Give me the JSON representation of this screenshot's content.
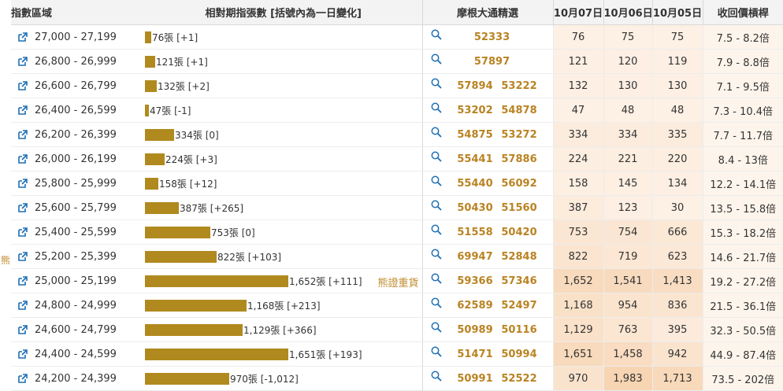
{
  "side_label": "熊",
  "headers": {
    "range": "指數區域",
    "ma": "相對期指張數 [括號內為一日變化]",
    "warrants": "摩根大通精選",
    "d1": "10月07日",
    "d2": "10月06日",
    "d3": "10月05日",
    "recall": "收回價槓桿"
  },
  "colors": {
    "bar": "#b08a1e",
    "accent": "#c08b2d",
    "heat_strong": "#f7d5b3",
    "heat_light": "#fdf1e6"
  },
  "rows": [
    {
      "range": "27,000 - 27,199",
      "ma_value": 76,
      "ma_label": "76張 [+1]",
      "tag": "",
      "warrants": [
        "52333"
      ],
      "d1": "76",
      "d2": "75",
      "d3": "75",
      "recall": "7.5 - 8.2倍"
    },
    {
      "range": "26,800 - 26,999",
      "ma_value": 121,
      "ma_label": "121張 [+1]",
      "tag": "",
      "warrants": [
        "57897"
      ],
      "d1": "121",
      "d2": "120",
      "d3": "119",
      "recall": "7.9 - 8.8倍"
    },
    {
      "range": "26,600 - 26,799",
      "ma_value": 132,
      "ma_label": "132張 [+2]",
      "tag": "",
      "warrants": [
        "57894",
        "53222"
      ],
      "d1": "132",
      "d2": "130",
      "d3": "130",
      "recall": "7.1 - 9.5倍"
    },
    {
      "range": "26,400 - 26,599",
      "ma_value": 47,
      "ma_label": "47張 [-1]",
      "tag": "",
      "warrants": [
        "53202",
        "54878"
      ],
      "d1": "47",
      "d2": "48",
      "d3": "48",
      "recall": "7.3 - 10.4倍"
    },
    {
      "range": "26,200 - 26,399",
      "ma_value": 334,
      "ma_label": "334張 [0]",
      "tag": "",
      "warrants": [
        "54875",
        "53272"
      ],
      "d1": "334",
      "d2": "334",
      "d3": "335",
      "recall": "7.7 - 11.7倍"
    },
    {
      "range": "26,000 - 26,199",
      "ma_value": 224,
      "ma_label": "224張 [+3]",
      "tag": "",
      "warrants": [
        "55441",
        "57886"
      ],
      "d1": "224",
      "d2": "221",
      "d3": "220",
      "recall": "8.4 - 13倍"
    },
    {
      "range": "25,800 - 25,999",
      "ma_value": 158,
      "ma_label": "158張 [+12]",
      "tag": "",
      "warrants": [
        "55440",
        "56092"
      ],
      "d1": "158",
      "d2": "145",
      "d3": "134",
      "recall": "12.2 - 14.1倍"
    },
    {
      "range": "25,600 - 25,799",
      "ma_value": 387,
      "ma_label": "387張 [+265]",
      "tag": "",
      "warrants": [
        "50430",
        "51560"
      ],
      "d1": "387",
      "d2": "123",
      "d3": "30",
      "recall": "13.5 - 15.8倍"
    },
    {
      "range": "25,400 - 25,599",
      "ma_value": 753,
      "ma_label": "753張 [0]",
      "tag": "",
      "warrants": [
        "51558",
        "50420"
      ],
      "d1": "753",
      "d2": "754",
      "d3": "666",
      "recall": "15.3 - 18.2倍"
    },
    {
      "range": "25,200 - 25,399",
      "ma_value": 822,
      "ma_label": "822張 [+103]",
      "tag": "",
      "warrants": [
        "69947",
        "52848"
      ],
      "d1": "822",
      "d2": "719",
      "d3": "623",
      "recall": "14.6 - 21.7倍"
    },
    {
      "range": "25,000 - 25,199",
      "ma_value": 1652,
      "ma_label": "1,652張 [+111]",
      "tag": "熊證重貨",
      "warrants": [
        "59366",
        "57346"
      ],
      "d1": "1,652",
      "d2": "1,541",
      "d3": "1,413",
      "recall": "19.2 - 27.2倍"
    },
    {
      "range": "24,800 - 24,999",
      "ma_value": 1168,
      "ma_label": "1,168張 [+213]",
      "tag": "",
      "warrants": [
        "62589",
        "52497"
      ],
      "d1": "1,168",
      "d2": "954",
      "d3": "836",
      "recall": "21.5 - 36.1倍"
    },
    {
      "range": "24,600 - 24,799",
      "ma_value": 1129,
      "ma_label": "1,129張 [+366]",
      "tag": "",
      "warrants": [
        "50989",
        "50116"
      ],
      "d1": "1,129",
      "d2": "763",
      "d3": "395",
      "recall": "32.3 - 50.5倍"
    },
    {
      "range": "24,400 - 24,599",
      "ma_value": 1651,
      "ma_label": "1,651張 [+193]",
      "tag": "",
      "warrants": [
        "51471",
        "50994"
      ],
      "d1": "1,651",
      "d2": "1,458",
      "d3": "942",
      "recall": "44.9 - 87.4倍"
    },
    {
      "range": "24,200 - 24,399",
      "ma_value": 970,
      "ma_label": "970張 [-1,012]",
      "tag": "",
      "warrants": [
        "50991",
        "52522"
      ],
      "d1": "970",
      "d2": "1,983",
      "d3": "1,713",
      "recall": "73.5 - 202倍"
    }
  ]
}
